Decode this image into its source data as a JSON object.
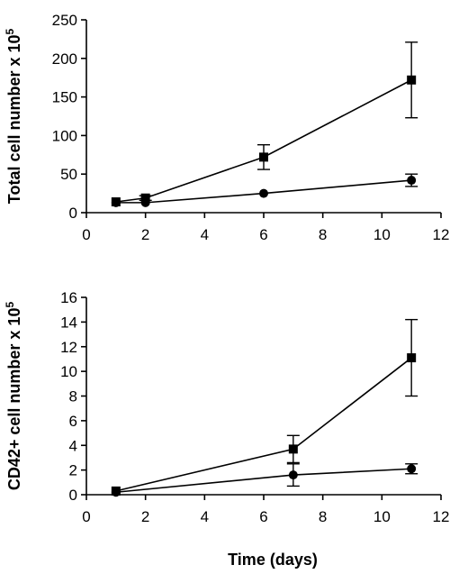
{
  "chart_data": [
    {
      "type": "line",
      "ylabel": "Total cell number x 10",
      "ylabel_sup": "5",
      "xlabel": "",
      "xlim": [
        0,
        12
      ],
      "ylim": [
        0,
        250
      ],
      "xticks": [
        0,
        2,
        4,
        6,
        8,
        10,
        12
      ],
      "yticks": [
        0,
        50,
        100,
        150,
        200,
        250
      ],
      "grid": false,
      "series": [
        {
          "marker": "square",
          "x": [
            1,
            2,
            6,
            11
          ],
          "y": [
            14,
            19,
            72,
            172
          ],
          "err": [
            0,
            3,
            16,
            49
          ]
        },
        {
          "marker": "circle",
          "x": [
            1,
            2,
            6,
            11
          ],
          "y": [
            13,
            13,
            25,
            42
          ],
          "err": [
            0,
            0,
            0,
            8
          ]
        }
      ]
    },
    {
      "type": "line",
      "ylabel": "CD42+ cell number x 10",
      "ylabel_sup": "5",
      "xlabel": "Time (days)",
      "xlim": [
        0,
        12
      ],
      "ylim": [
        0,
        16
      ],
      "xticks": [
        0,
        2,
        4,
        6,
        8,
        10,
        12
      ],
      "yticks": [
        0,
        2,
        4,
        6,
        8,
        10,
        12,
        14,
        16
      ],
      "grid": false,
      "series": [
        {
          "marker": "square",
          "x": [
            1,
            7,
            11
          ],
          "y": [
            0.3,
            3.7,
            11.1
          ],
          "err": [
            0,
            1.1,
            3.1
          ]
        },
        {
          "marker": "circle",
          "x": [
            1,
            7,
            11
          ],
          "y": [
            0.2,
            1.6,
            2.1
          ],
          "err": [
            0,
            0.9,
            0.4
          ]
        }
      ]
    }
  ]
}
